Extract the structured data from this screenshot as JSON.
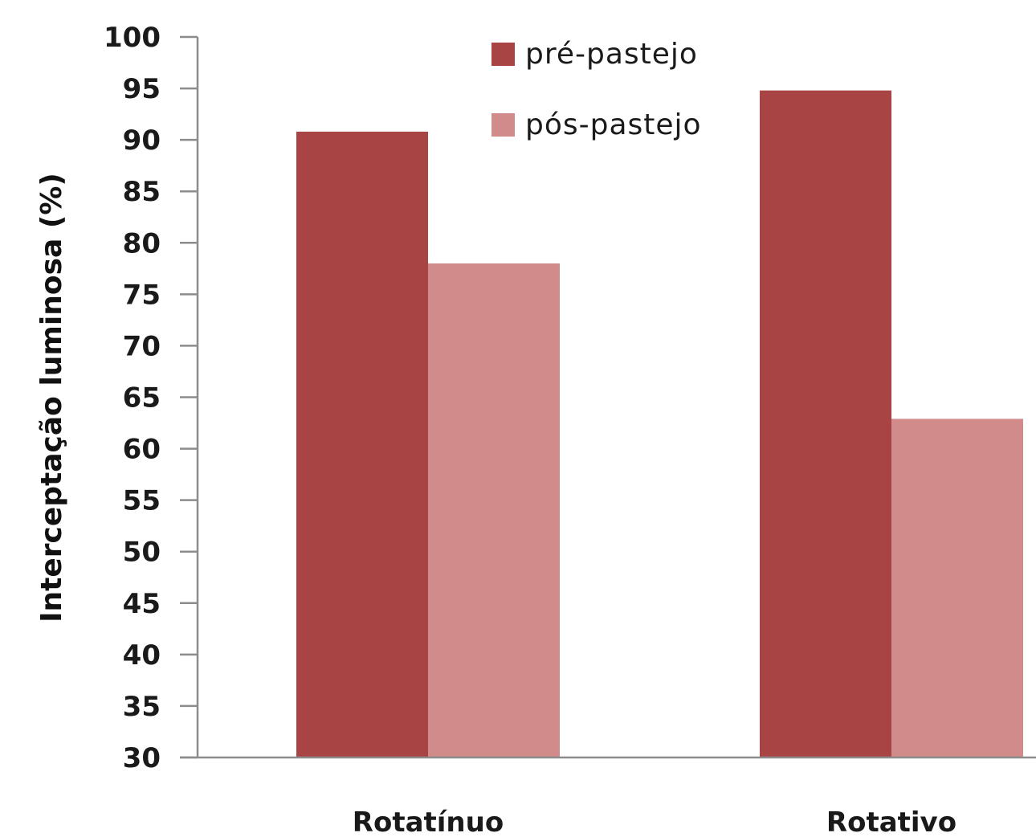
{
  "chart_data": {
    "type": "bar",
    "title": "",
    "xlabel": "",
    "ylabel": "Interceptação luminosa (%)",
    "ylim": [
      30,
      100
    ],
    "ytick_step": 5,
    "yticks": [
      "30",
      "35",
      "40",
      "45",
      "50",
      "55",
      "60",
      "65",
      "70",
      "75",
      "80",
      "85",
      "90",
      "95",
      "100"
    ],
    "categories": [
      "Rotatínuo",
      "Rotativo"
    ],
    "series": [
      {
        "name": "pré-pastejo",
        "color": "#a84443",
        "values": [
          90.8,
          94.8
        ]
      },
      {
        "name": "pós-pastejo",
        "color": "#d08b8a",
        "values": [
          78.0,
          62.9
        ]
      }
    ],
    "legend_position": "top-center",
    "grid": false,
    "axis_color": "#8c8c8c"
  }
}
